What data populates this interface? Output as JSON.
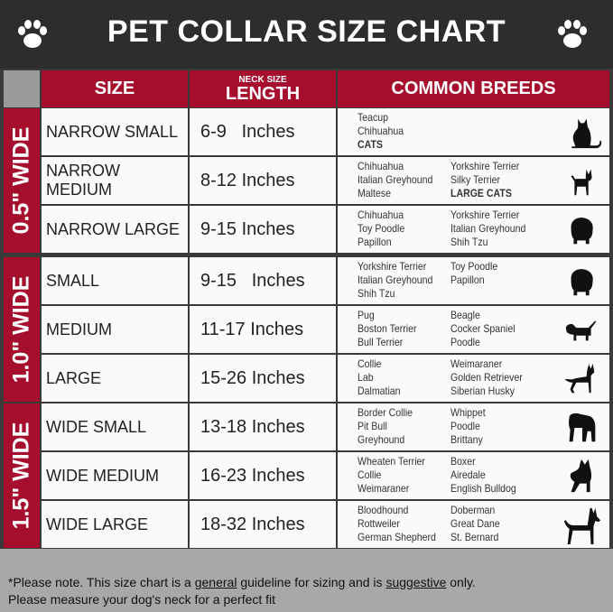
{
  "title": "PET COLLAR SIZE CHART",
  "header": {
    "size": "SIZE",
    "length_small": "NECK SIZE",
    "length": "LENGTH",
    "breeds": "COMMON BREEDS"
  },
  "colors": {
    "red": "#a50f2d",
    "dark": "#2d2d2d",
    "footer": "#a8a8a8"
  },
  "groups": [
    {
      "label": "0.5\" WIDE",
      "rows": [
        {
          "size": "NARROW SMALL",
          "length": "6-9   Inches",
          "col1": [
            "Teacup",
            "Chihuahua",
            "CATS"
          ],
          "col1_bold": [
            2
          ],
          "col2": [],
          "col2_bold": [],
          "icon": "cat-icon"
        },
        {
          "size": "NARROW MEDIUM",
          "length": "8-12 Inches",
          "col1": [
            "Chihuahua",
            "Italian Greyhound",
            "Maltese"
          ],
          "col1_bold": [],
          "col2": [
            "Yorkshire Terrier",
            "Silky Terrier",
            "LARGE CATS"
          ],
          "col2_bold": [
            2
          ],
          "icon": "chihuahua-icon"
        },
        {
          "size": "NARROW LARGE",
          "length": "9-15 Inches",
          "col1": [
            "Chihuahua",
            "Toy Poodle",
            "Papillon"
          ],
          "col1_bold": [],
          "col2": [
            "Yorkshire Terrier",
            "Italian Greyhound",
            "Shih Tzu"
          ],
          "col2_bold": [],
          "icon": "pomeranian-icon"
        }
      ]
    },
    {
      "label": "1.0\" WIDE",
      "rows": [
        {
          "size": "SMALL",
          "length": "9-15   Inches",
          "col1": [
            "Yorkshire Terrier",
            "Italian Greyhound",
            "Shih Tzu"
          ],
          "col1_bold": [],
          "col2": [
            "Toy Poodle",
            "Papillon"
          ],
          "col2_bold": [],
          "icon": "pomeranian-icon"
        },
        {
          "size": "MEDIUM",
          "length": "11-17 Inches",
          "col1": [
            "Pug",
            "Boston Terrier",
            "Bull Terrier"
          ],
          "col1_bold": [],
          "col2": [
            "Beagle",
            "Cocker Spaniel",
            "Poodle"
          ],
          "col2_bold": [],
          "icon": "dachshund-icon"
        },
        {
          "size": "LARGE",
          "length": "15-26 Inches",
          "col1": [
            "Collie",
            "Lab",
            "Dalmatian"
          ],
          "col1_bold": [],
          "col2": [
            "Weimaraner",
            "Golden Retriever",
            "Siberian Husky"
          ],
          "col2_bold": [],
          "icon": "shepherd-dog-icon"
        }
      ]
    },
    {
      "label": "1.5\" WIDE",
      "rows": [
        {
          "size": "WIDE SMALL",
          "length": "13-18 Inches",
          "col1": [
            "Border Collie",
            "Pit Bull",
            "Greyhound"
          ],
          "col1_bold": [],
          "col2": [
            "Whippet",
            "Poodle",
            "Brittany"
          ],
          "col2_bold": [],
          "icon": "bulldog-icon"
        },
        {
          "size": "WIDE MEDIUM",
          "length": "16-23 Inches",
          "col1": [
            "Wheaten Terrier",
            "Collie",
            "Weimaraner"
          ],
          "col1_bold": [],
          "col2": [
            "Boxer",
            "Airedale",
            "English Bulldog"
          ],
          "col2_bold": [],
          "icon": "pitbull-icon"
        },
        {
          "size": "WIDE LARGE",
          "length": "18-32 Inches",
          "col1": [
            "Bloodhound",
            "Rottweiler",
            "German Shepherd"
          ],
          "col1_bold": [],
          "col2": [
            "Doberman",
            "Great Dane",
            "St. Bernard"
          ],
          "col2_bold": [],
          "icon": "doberman-icon"
        }
      ]
    }
  ],
  "footer": {
    "part1": "*Please note. This size chart is a ",
    "general": "general",
    "part2": " guideline for sizing and is ",
    "suggestive": "suggestive",
    "part3": " only.",
    "line2": "Please measure your dog's neck for a perfect fit"
  }
}
